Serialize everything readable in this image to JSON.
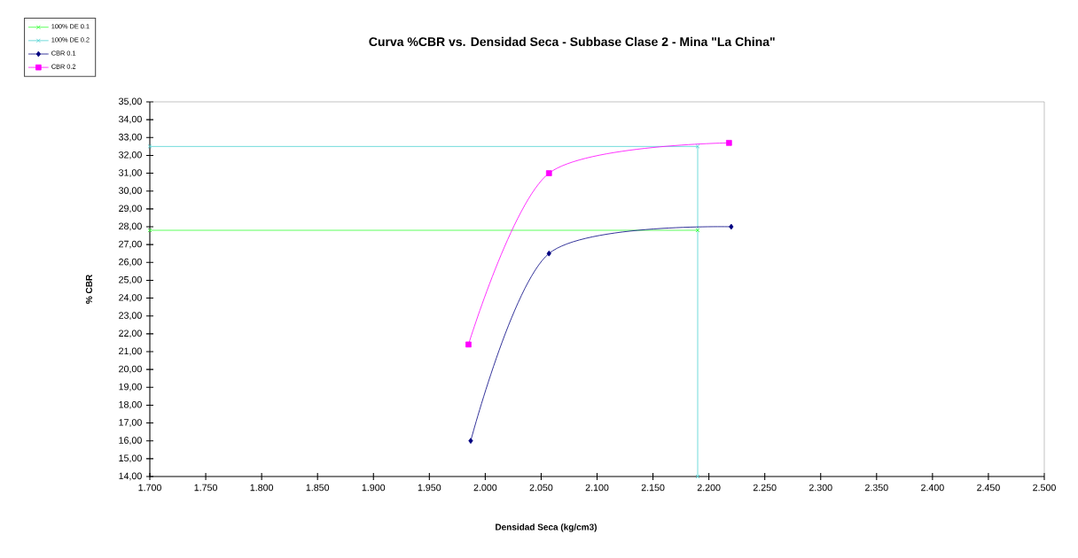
{
  "chart_data": {
    "type": "line",
    "title": "Curva  %CBR  vs. Densidad Seca -  Subbase Clase 2 - Mina \"La China\"",
    "xlabel": "Densidad Seca (kg/cm3)",
    "ylabel": "% CBR",
    "xlim": [
      1700,
      2500
    ],
    "xticks": [
      {
        "value": 1700,
        "label": "1.700"
      },
      {
        "value": 1750,
        "label": "1.750"
      },
      {
        "value": 1800,
        "label": "1.800"
      },
      {
        "value": 1850,
        "label": "1.850"
      },
      {
        "value": 1900,
        "label": "1.900"
      },
      {
        "value": 1950,
        "label": "1.950"
      },
      {
        "value": 2000,
        "label": "2.000"
      },
      {
        "value": 2050,
        "label": "2.050"
      },
      {
        "value": 2100,
        "label": "2.100"
      },
      {
        "value": 2150,
        "label": "2.150"
      },
      {
        "value": 2200,
        "label": "2.200"
      },
      {
        "value": 2250,
        "label": "2.250"
      },
      {
        "value": 2300,
        "label": "2.300"
      },
      {
        "value": 2350,
        "label": "2.350"
      },
      {
        "value": 2400,
        "label": "2.400"
      },
      {
        "value": 2450,
        "label": "2.450"
      },
      {
        "value": 2500,
        "label": "2.500"
      }
    ],
    "ylim": [
      14,
      35
    ],
    "yticks": [
      {
        "value": 14,
        "label": "14,00"
      },
      {
        "value": 15,
        "label": "15,00"
      },
      {
        "value": 16,
        "label": "16,00"
      },
      {
        "value": 17,
        "label": "17,00"
      },
      {
        "value": 18,
        "label": "18,00"
      },
      {
        "value": 19,
        "label": "19,00"
      },
      {
        "value": 20,
        "label": "20,00"
      },
      {
        "value": 21,
        "label": "21,00"
      },
      {
        "value": 22,
        "label": "22,00"
      },
      {
        "value": 23,
        "label": "23,00"
      },
      {
        "value": 24,
        "label": "24,00"
      },
      {
        "value": 25,
        "label": "25,00"
      },
      {
        "value": 26,
        "label": "26,00"
      },
      {
        "value": 27,
        "label": "27,00"
      },
      {
        "value": 28,
        "label": "28,00"
      },
      {
        "value": 29,
        "label": "29,00"
      },
      {
        "value": 30,
        "label": "30,00"
      },
      {
        "value": 31,
        "label": "31,00"
      },
      {
        "value": 32,
        "label": "32,00"
      },
      {
        "value": 33,
        "label": "33,00"
      },
      {
        "value": 34,
        "label": "34,00"
      },
      {
        "value": 35,
        "label": "35,00"
      }
    ],
    "legend": "top left",
    "series": [
      {
        "name": "100% DE 0.1",
        "color": "#33ff33",
        "marker": "cross",
        "x": [
          1700,
          2190
        ],
        "values": [
          27.8,
          27.8
        ]
      },
      {
        "name": "100% DE 0.2",
        "color": "#4dd2d2",
        "marker": "cross",
        "x": [
          1700,
          2190,
          2190
        ],
        "values": [
          32.5,
          32.5,
          14
        ]
      },
      {
        "name": "CBR 0.1",
        "color": "#000080",
        "marker": "diamond",
        "x": [
          1987,
          2057,
          2220
        ],
        "values": [
          16.0,
          26.5,
          28.0
        ]
      },
      {
        "name": "CBR 0.2",
        "color": "#ff00ff",
        "marker": "square",
        "x": [
          1985,
          2057,
          2218
        ],
        "values": [
          21.4,
          31.0,
          32.7
        ]
      }
    ]
  }
}
